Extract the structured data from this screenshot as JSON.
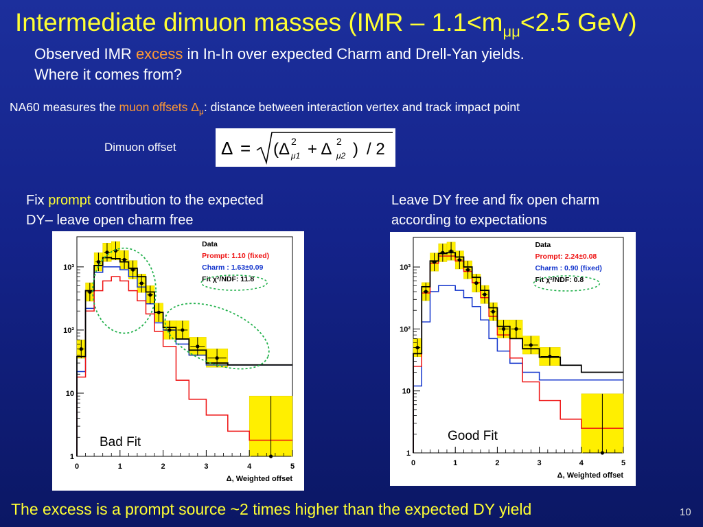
{
  "slide": {
    "title_main": "Intermediate dimuon masses (IMR – 1.1<m",
    "title_sub": "μμ",
    "title_end": "<2.5 GeV)",
    "subtitle_a": "Observed IMR ",
    "subtitle_excess": "excess",
    "subtitle_b": " in In-In over expected Charm and Drell-Yan yields.",
    "subtitle_line2": "Where it comes from?",
    "na60_a": "NA60 measures the ",
    "na60_muon": "muon offsets Δ",
    "na60_mu": "μ",
    "na60_b": ": distance between interaction vertex and track impact point",
    "dimuon_offset_label": "Dimuon offset",
    "left_caption_a": "Fix ",
    "left_caption_prompt": "prompt",
    "left_caption_b": " contribution to the expected",
    "left_caption_line2": "DY– leave open charm free",
    "right_caption_line1": "Leave DY free and fix open charm",
    "right_caption_line2": "according to expectations",
    "bad_fit": "Bad Fit",
    "good_fit": "Good Fit",
    "bottom_line": "The excess is a prompt source ~2 times higher than the expected DY yield",
    "page_number": "10"
  },
  "formula": {
    "delta": "Δ",
    "equals": "=",
    "open": "(Δ",
    "sq1": "2",
    "mu1": "μ1",
    "plus": "+ Δ",
    "sq2": "2",
    "mu2": "μ2",
    "close": ")",
    "div": "/ 2"
  },
  "chart_data": [
    {
      "type": "line",
      "xlabel": "Δ, Weighted offset",
      "xlim": [
        0,
        5
      ],
      "ylim": [
        1,
        3000
      ],
      "yscale": "log",
      "x_ticks": [
        "0",
        "1",
        "2",
        "3",
        "4",
        "5"
      ],
      "y_ticks": [
        "1",
        "10",
        "10²",
        "10³"
      ],
      "legend": [
        "Data",
        "Prompt: 1.10 (fixed)",
        "Charm : 1.63±0.09",
        "Fit  χ²/NDF: 11.8"
      ],
      "legend_colors": [
        "#000000",
        "#ee1111",
        "#1133cc",
        "#000000"
      ],
      "bin_edges": [
        0,
        0.2,
        0.4,
        0.6,
        0.8,
        1.0,
        1.2,
        1.4,
        1.6,
        1.8,
        2.0,
        2.3,
        2.6,
        3.0,
        3.5,
        4.0,
        5.0
      ],
      "series": [
        {
          "name": "Data",
          "values": [
            50,
            400,
            1200,
            1700,
            1800,
            1300,
            900,
            550,
            360,
            190,
            100,
            100,
            55,
            36,
            null,
            1
          ],
          "color": "#000000"
        },
        {
          "name": "Prompt: 1.10 (fixed)",
          "values": [
            18,
            200,
            420,
            600,
            700,
            600,
            420,
            290,
            180,
            95,
            55,
            16,
            8,
            4.5,
            2.5,
            1.8
          ],
          "color": "#ee1111"
        },
        {
          "name": "Charm : 1.63±0.09",
          "values": [
            22,
            220,
            820,
            1000,
            1000,
            900,
            700,
            480,
            260,
            130,
            100,
            60,
            40,
            28,
            28,
            28
          ],
          "color": "#1133cc"
        },
        {
          "name": "Fit",
          "values": [
            38,
            420,
            1050,
            1400,
            1350,
            1200,
            950,
            700,
            400,
            190,
            110,
            72,
            48,
            30,
            28,
            28
          ],
          "color": "#000000"
        }
      ]
    },
    {
      "type": "line",
      "xlabel": "Δ, Weighted offset",
      "xlim": [
        0,
        5
      ],
      "ylim": [
        1,
        3000
      ],
      "yscale": "log",
      "x_ticks": [
        "0",
        "1",
        "2",
        "3",
        "4",
        "5"
      ],
      "y_ticks": [
        "1",
        "10",
        "10²",
        "10³"
      ],
      "legend": [
        "Data",
        "Prompt: 2.24±0.08",
        "Charm : 0.90 (fixed)",
        "Fit  χ²/NDF:  0.8"
      ],
      "legend_colors": [
        "#000000",
        "#ee1111",
        "#1133cc",
        "#000000"
      ],
      "bin_edges": [
        0,
        0.2,
        0.4,
        0.6,
        0.8,
        1.0,
        1.2,
        1.4,
        1.6,
        1.8,
        2.0,
        2.3,
        2.6,
        3.0,
        3.5,
        4.0,
        5.0
      ],
      "series": [
        {
          "name": "Data",
          "values": [
            50,
            400,
            1200,
            1700,
            1800,
            1300,
            900,
            550,
            360,
            190,
            100,
            100,
            55,
            36,
            null,
            1
          ],
          "color": "#000000"
        },
        {
          "name": "Prompt: 2.24±0.08",
          "values": [
            25,
            380,
            1150,
            1500,
            1500,
            1250,
            850,
            560,
            320,
            160,
            80,
            34,
            14,
            7,
            3.5,
            2.5
          ],
          "color": "#ee1111"
        },
        {
          "name": "Charm : 0.90 (fixed)",
          "values": [
            12,
            130,
            400,
            500,
            500,
            420,
            320,
            230,
            140,
            70,
            44,
            28,
            20,
            15,
            15,
            15
          ],
          "color": "#1133cc"
        },
        {
          "name": "Fit",
          "values": [
            40,
            480,
            1250,
            1650,
            1700,
            1450,
            1000,
            680,
            420,
            220,
            110,
            70,
            48,
            35,
            26,
            20
          ],
          "color": "#000000"
        }
      ]
    }
  ]
}
